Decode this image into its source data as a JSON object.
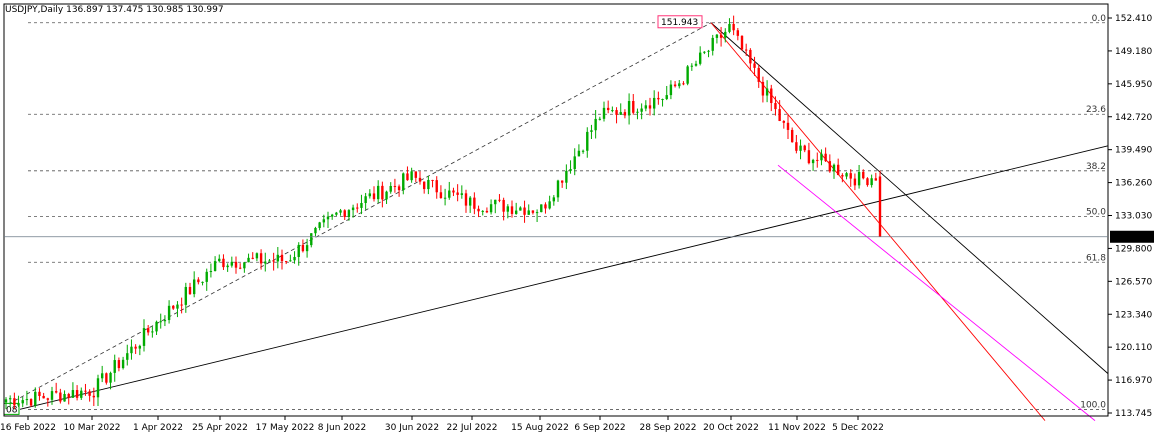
{
  "chart_data": {
    "type": "candlestick",
    "title": "USDJPY,Daily",
    "ohlc_text": "136.897 137.475 130.985 130.997",
    "y_ticks": [
      "152.410",
      "149.180",
      "145.950",
      "142.720",
      "139.490",
      "136.260",
      "133.030",
      "129.800",
      "126.570",
      "123.340",
      "120.110",
      "116.970",
      "113.745"
    ],
    "ylim": [
      113.745,
      152.41
    ],
    "x_ticks": [
      "16 Feb 2022",
      "10 Mar 2022",
      "1 Apr 2022",
      "25 Apr 2022",
      "17 May 2022",
      "8 Jun 2022",
      "30 Jun 2022",
      "22 Jul 2022",
      "15 Aug 2022",
      "6 Sep 2022",
      "28 Sep 2022",
      "20 Oct 2022",
      "11 Nov 2022",
      "5 Dec 2022"
    ],
    "current_price": "130.997",
    "high_label": "151.943",
    "low_label": "08",
    "fib_levels": [
      {
        "label": "0.0",
        "value": 151.943
      },
      {
        "label": "23.6",
        "value": 142.99
      },
      {
        "label": "38.2",
        "value": 137.45
      },
      {
        "label": "50.0",
        "value": 132.97
      },
      {
        "label": "61.8",
        "value": 128.5
      },
      {
        "label": "100.0",
        "value": 114.08
      }
    ],
    "candle_anchors": [
      [
        "16 Feb 2022",
        115.1
      ],
      [
        "10 Mar 2022",
        116.0
      ],
      [
        "1 Apr 2022",
        122.6
      ],
      [
        "25 Apr 2022",
        128.6
      ],
      [
        "17 May 2022",
        128.7
      ],
      [
        "8 Jun 2022",
        133.5
      ],
      [
        "30 Jun 2022",
        136.8
      ],
      [
        "22 Jul 2022",
        134.3
      ],
      [
        "15 Aug 2022",
        133.7
      ],
      [
        "6 Sep 2022",
        142.8
      ],
      [
        "28 Sep 2022",
        144.8
      ],
      [
        "20 Oct 2022",
        151.5
      ],
      [
        "11 Nov 2022",
        139.5
      ],
      [
        "5 Dec 2022",
        136.6
      ]
    ],
    "colors": {
      "bull": "#00aa00",
      "bear": "#ff0000",
      "fib": "#555555",
      "trendline": "#000000",
      "channel": "#ff00ff",
      "high_label": "#ff3377"
    }
  }
}
